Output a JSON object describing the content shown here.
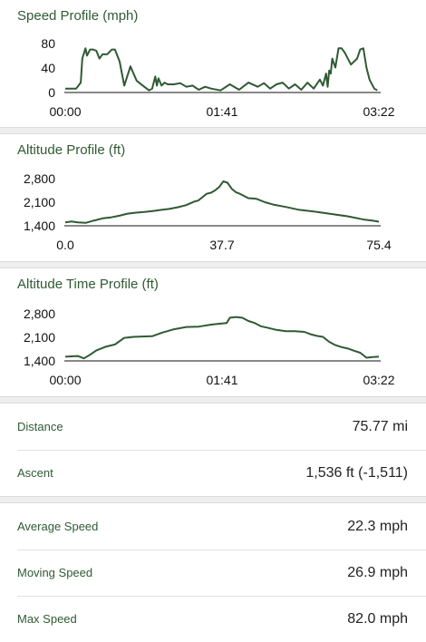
{
  "charts": [
    {
      "title": "Speed Profile (mph)",
      "y_ticks": [
        "80",
        "40",
        "0"
      ],
      "x_ticks": [
        "00:00",
        "01:41",
        "03:22"
      ]
    },
    {
      "title": "Altitude Profile (ft)",
      "y_ticks": [
        "2,800",
        "2,100",
        "1,400"
      ],
      "x_ticks": [
        "0.0",
        "37.7",
        "75.4"
      ]
    },
    {
      "title": "Altitude Time Profile (ft)",
      "y_ticks": [
        "2,800",
        "2,100",
        "1,400"
      ],
      "x_ticks": [
        "00:00",
        "01:41",
        "03:22"
      ]
    }
  ],
  "chart_data": [
    {
      "type": "line",
      "title": "Speed Profile (mph)",
      "x_unit": "minutes",
      "xlim": [
        0,
        202
      ],
      "ylim": [
        0,
        80
      ],
      "line_color": "#2f5a33",
      "x": [
        0,
        7,
        10,
        11,
        13,
        14,
        16,
        18,
        20,
        22,
        24,
        27,
        30,
        32,
        35,
        38,
        42,
        46,
        50,
        54,
        56,
        58,
        59,
        60,
        62,
        64,
        66,
        70,
        74,
        78,
        82,
        86,
        90,
        94,
        100,
        106,
        112,
        118,
        124,
        128,
        132,
        136,
        140,
        144,
        148,
        152,
        156,
        160,
        164,
        166,
        168,
        169,
        170,
        171,
        172,
        174,
        176,
        178,
        180,
        184,
        188,
        190,
        192,
        194,
        196,
        199,
        201
      ],
      "y": [
        5,
        5,
        15,
        55,
        72,
        60,
        70,
        70,
        68,
        55,
        62,
        62,
        70,
        70,
        50,
        10,
        42,
        18,
        10,
        2,
        5,
        25,
        10,
        22,
        10,
        15,
        12,
        12,
        14,
        8,
        10,
        3,
        8,
        5,
        2,
        12,
        3,
        15,
        8,
        14,
        5,
        12,
        15,
        5,
        12,
        3,
        15,
        5,
        20,
        10,
        30,
        8,
        35,
        30,
        55,
        40,
        72,
        72,
        65,
        45,
        55,
        70,
        72,
        40,
        20,
        5,
        2
      ]
    },
    {
      "type": "line",
      "title": "Altitude Profile (ft)",
      "x_unit": "miles",
      "xlim": [
        0,
        75.4
      ],
      "ylim": [
        1400,
        2800
      ],
      "line_color": "#2f5a33",
      "x": [
        0,
        1.5,
        3,
        5,
        7,
        9,
        11,
        13,
        15,
        17,
        19,
        21,
        23,
        25,
        27,
        29,
        31,
        32,
        33,
        34,
        35,
        36,
        37,
        38,
        39,
        40,
        41,
        42,
        44,
        46,
        48,
        50,
        53,
        56,
        60,
        64,
        68,
        72,
        74,
        75.4
      ],
      "y": [
        1500,
        1530,
        1500,
        1490,
        1560,
        1620,
        1650,
        1700,
        1760,
        1790,
        1810,
        1840,
        1870,
        1900,
        1950,
        2010,
        2120,
        2150,
        2250,
        2350,
        2380,
        2450,
        2550,
        2720,
        2680,
        2500,
        2400,
        2350,
        2220,
        2200,
        2100,
        2030,
        1960,
        1880,
        1820,
        1750,
        1680,
        1580,
        1550,
        1520
      ]
    },
    {
      "type": "line",
      "title": "Altitude Time Profile (ft)",
      "x_unit": "minutes",
      "xlim": [
        0,
        202
      ],
      "ylim": [
        1400,
        2800
      ],
      "line_color": "#2f5a33",
      "x": [
        0,
        8,
        12,
        16,
        20,
        26,
        32,
        38,
        44,
        50,
        56,
        62,
        70,
        78,
        86,
        94,
        100,
        104,
        106,
        110,
        114,
        118,
        122,
        126,
        130,
        136,
        142,
        148,
        154,
        158,
        162,
        166,
        170,
        174,
        178,
        182,
        186,
        190,
        194,
        198,
        202
      ],
      "y": [
        1500,
        1520,
        1450,
        1560,
        1690,
        1800,
        1870,
        2070,
        2100,
        2110,
        2120,
        2220,
        2330,
        2400,
        2410,
        2470,
        2500,
        2520,
        2680,
        2700,
        2680,
        2580,
        2520,
        2420,
        2380,
        2310,
        2270,
        2270,
        2250,
        2180,
        2130,
        2100,
        1950,
        1850,
        1790,
        1750,
        1680,
        1620,
        1470,
        1490,
        1500
      ]
    }
  ],
  "stats_group1": [
    {
      "label": "Distance",
      "value": "75.77 mi"
    },
    {
      "label": "Ascent",
      "value": "1,536 ft (-1,511)"
    }
  ],
  "stats_group2": [
    {
      "label": "Average Speed",
      "value": "22.3 mph"
    },
    {
      "label": "Moving Speed",
      "value": "26.9 mph"
    },
    {
      "label": "Max Speed",
      "value": "82.0 mph"
    }
  ]
}
